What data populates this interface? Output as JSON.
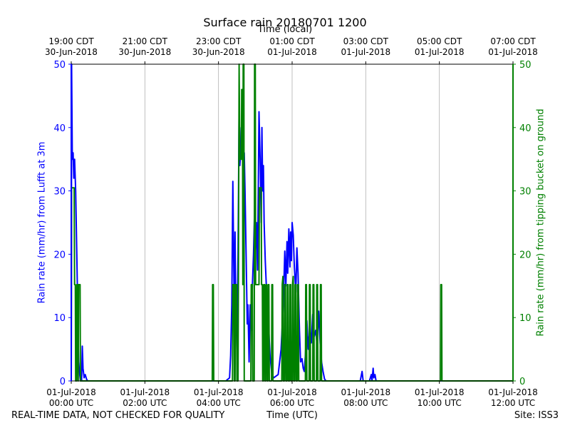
{
  "chart_data": {
    "type": "line",
    "title": "Surface rain 20180701 1200",
    "x_top_label": "Time (local)",
    "x_bottom_label": "Time (UTC)",
    "ylabel_left": "Rain rate (mm/hr) from Lufft at 3m",
    "ylabel_right": "Rain rate (mm/hr) from tipping bucket on ground",
    "x_range_hours_utc": [
      0,
      12
    ],
    "ylim_left": [
      0,
      50
    ],
    "ylim_right": [
      0,
      50
    ],
    "y_ticks": [
      0,
      10,
      20,
      30,
      40,
      50
    ],
    "grid": "vertical",
    "x_ticks_utc": [
      {
        "hour": 0,
        "date": "01-Jul-2018",
        "time": "00:00 UTC"
      },
      {
        "hour": 2,
        "date": "01-Jul-2018",
        "time": "02:00 UTC"
      },
      {
        "hour": 4,
        "date": "01-Jul-2018",
        "time": "04:00 UTC"
      },
      {
        "hour": 6,
        "date": "01-Jul-2018",
        "time": "06:00 UTC"
      },
      {
        "hour": 8,
        "date": "01-Jul-2018",
        "time": "08:00 UTC"
      },
      {
        "hour": 10,
        "date": "01-Jul-2018",
        "time": "10:00 UTC"
      },
      {
        "hour": 12,
        "date": "01-Jul-2018",
        "time": "12:00 UTC"
      }
    ],
    "x_ticks_local": [
      {
        "hour": 0,
        "time": "19:00 CDT",
        "date": "30-Jun-2018"
      },
      {
        "hour": 2,
        "time": "21:00 CDT",
        "date": "30-Jun-2018"
      },
      {
        "hour": 4,
        "time": "23:00 CDT",
        "date": "30-Jun-2018"
      },
      {
        "hour": 6,
        "time": "01:00 CDT",
        "date": "01-Jul-2018"
      },
      {
        "hour": 8,
        "time": "03:00 CDT",
        "date": "01-Jul-2018"
      },
      {
        "hour": 10,
        "time": "05:00 CDT",
        "date": "01-Jul-2018"
      },
      {
        "hour": 12,
        "time": "07:00 CDT",
        "date": "01-Jul-2018"
      }
    ],
    "series": [
      {
        "axis": "left",
        "color": "#0000ff",
        "points": [
          [
            0.0,
            0
          ],
          [
            0.01,
            50
          ],
          [
            0.03,
            35
          ],
          [
            0.05,
            36
          ],
          [
            0.07,
            32
          ],
          [
            0.09,
            35
          ],
          [
            0.12,
            30
          ],
          [
            0.15,
            20
          ],
          [
            0.18,
            10
          ],
          [
            0.2,
            3
          ],
          [
            0.23,
            1
          ],
          [
            0.25,
            0
          ],
          [
            0.28,
            0
          ],
          [
            0.3,
            5.5
          ],
          [
            0.32,
            2
          ],
          [
            0.35,
            0.5
          ],
          [
            0.38,
            1
          ],
          [
            0.42,
            0.2
          ],
          [
            0.45,
            0
          ],
          [
            4.2,
            0
          ],
          [
            4.3,
            0.5
          ],
          [
            4.33,
            4
          ],
          [
            4.36,
            12
          ],
          [
            4.39,
            31.5
          ],
          [
            4.41,
            20
          ],
          [
            4.43,
            10
          ],
          [
            4.45,
            23.5
          ],
          [
            4.47,
            12
          ],
          [
            4.5,
            5
          ],
          [
            4.53,
            20
          ],
          [
            4.56,
            43
          ],
          [
            4.58,
            34
          ],
          [
            4.6,
            36
          ],
          [
            4.62,
            40
          ],
          [
            4.65,
            35
          ],
          [
            4.68,
            33
          ],
          [
            4.7,
            36
          ],
          [
            4.72,
            30
          ],
          [
            4.75,
            20
          ],
          [
            4.78,
            9
          ],
          [
            4.8,
            12
          ],
          [
            4.83,
            3
          ],
          [
            4.86,
            12
          ],
          [
            4.89,
            8
          ],
          [
            4.92,
            15
          ],
          [
            4.95,
            20
          ],
          [
            4.98,
            27
          ],
          [
            5.0,
            20
          ],
          [
            5.03,
            25
          ],
          [
            5.06,
            17.5
          ],
          [
            5.08,
            30
          ],
          [
            5.1,
            42.5
          ],
          [
            5.13,
            35
          ],
          [
            5.16,
            25
          ],
          [
            5.18,
            40
          ],
          [
            5.2,
            30
          ],
          [
            5.22,
            34
          ],
          [
            5.24,
            25
          ],
          [
            5.27,
            19
          ],
          [
            5.3,
            15
          ],
          [
            5.35,
            10
          ],
          [
            5.4,
            4
          ],
          [
            5.45,
            1
          ],
          [
            5.5,
            0.5
          ],
          [
            5.62,
            1
          ],
          [
            5.7,
            5
          ],
          [
            5.76,
            12
          ],
          [
            5.8,
            20.5
          ],
          [
            5.83,
            15
          ],
          [
            5.86,
            22
          ],
          [
            5.88,
            17
          ],
          [
            5.91,
            24
          ],
          [
            5.94,
            18
          ],
          [
            5.96,
            23.5
          ],
          [
            5.98,
            19
          ],
          [
            6.0,
            25
          ],
          [
            6.03,
            23
          ],
          [
            6.06,
            18
          ],
          [
            6.1,
            14
          ],
          [
            6.13,
            21
          ],
          [
            6.16,
            17
          ],
          [
            6.2,
            8
          ],
          [
            6.23,
            3
          ],
          [
            6.27,
            3.5
          ],
          [
            6.3,
            2
          ],
          [
            6.33,
            1.5
          ],
          [
            6.36,
            4
          ],
          [
            6.4,
            9.5
          ],
          [
            6.44,
            5
          ],
          [
            6.48,
            8.5
          ],
          [
            6.52,
            6
          ],
          [
            6.56,
            10.5
          ],
          [
            6.6,
            7
          ],
          [
            6.64,
            8
          ],
          [
            6.68,
            5.5
          ],
          [
            6.72,
            11
          ],
          [
            6.76,
            6
          ],
          [
            6.8,
            3
          ],
          [
            6.84,
            1.5
          ],
          [
            6.88,
            0.3
          ],
          [
            6.92,
            0
          ],
          [
            7.85,
            0
          ],
          [
            7.9,
            1.5
          ],
          [
            7.93,
            0
          ],
          [
            8.1,
            0
          ],
          [
            8.15,
            1
          ],
          [
            8.17,
            0
          ],
          [
            8.2,
            2
          ],
          [
            8.22,
            0.5
          ],
          [
            8.25,
            1
          ],
          [
            8.28,
            0
          ],
          [
            12.0,
            0
          ]
        ]
      },
      {
        "axis": "right",
        "color": "#008000",
        "points": [
          [
            0.0,
            0
          ],
          [
            0.01,
            30.5
          ],
          [
            0.08,
            30.5
          ],
          [
            0.09,
            15.2
          ],
          [
            0.11,
            15.2
          ],
          [
            0.12,
            0
          ],
          [
            0.14,
            0
          ],
          [
            0.15,
            15.2
          ],
          [
            0.17,
            15.2
          ],
          [
            0.18,
            0
          ],
          [
            0.19,
            0
          ],
          [
            0.2,
            15.2
          ],
          [
            0.24,
            15.2
          ],
          [
            0.25,
            0
          ],
          [
            0.45,
            0
          ],
          [
            3.83,
            0
          ],
          [
            3.84,
            15.2
          ],
          [
            3.86,
            15.2
          ],
          [
            3.87,
            0
          ],
          [
            4.38,
            0
          ],
          [
            4.39,
            15.2
          ],
          [
            4.42,
            15.2
          ],
          [
            4.43,
            0
          ],
          [
            4.45,
            0
          ],
          [
            4.46,
            15.2
          ],
          [
            4.49,
            15.2
          ],
          [
            4.5,
            0
          ],
          [
            4.53,
            0
          ],
          [
            4.54,
            15.2
          ],
          [
            4.56,
            50
          ],
          [
            4.58,
            35
          ],
          [
            4.62,
            35
          ],
          [
            4.63,
            46
          ],
          [
            4.65,
            46
          ],
          [
            4.66,
            15.2
          ],
          [
            4.67,
            50
          ],
          [
            4.69,
            50
          ],
          [
            4.7,
            0
          ],
          [
            4.88,
            0
          ],
          [
            4.89,
            15.2
          ],
          [
            4.92,
            15.2
          ],
          [
            4.93,
            0
          ],
          [
            4.97,
            0
          ],
          [
            4.98,
            50
          ],
          [
            5.0,
            50
          ],
          [
            5.01,
            15.2
          ],
          [
            5.1,
            15.2
          ],
          [
            5.11,
            30.5
          ],
          [
            5.16,
            30.5
          ],
          [
            5.17,
            15.2
          ],
          [
            5.19,
            15.2
          ],
          [
            5.2,
            0
          ],
          [
            5.22,
            0
          ],
          [
            5.23,
            15.2
          ],
          [
            5.25,
            15.2
          ],
          [
            5.26,
            0
          ],
          [
            5.28,
            0
          ],
          [
            5.29,
            15.2
          ],
          [
            5.31,
            15.2
          ],
          [
            5.32,
            0
          ],
          [
            5.34,
            0
          ],
          [
            5.35,
            15.2
          ],
          [
            5.37,
            15.2
          ],
          [
            5.38,
            0
          ],
          [
            5.44,
            0
          ],
          [
            5.45,
            15.2
          ],
          [
            5.47,
            15.2
          ],
          [
            5.48,
            0
          ],
          [
            5.72,
            0
          ],
          [
            5.73,
            15.2
          ],
          [
            5.75,
            16.5
          ],
          [
            5.76,
            0
          ],
          [
            5.79,
            0
          ],
          [
            5.8,
            15.2
          ],
          [
            5.82,
            15.2
          ],
          [
            5.83,
            0
          ],
          [
            5.86,
            0
          ],
          [
            5.87,
            15.2
          ],
          [
            5.89,
            15.2
          ],
          [
            5.9,
            0
          ],
          [
            5.93,
            0
          ],
          [
            5.94,
            15.2
          ],
          [
            5.96,
            15.2
          ],
          [
            5.97,
            0
          ],
          [
            6.0,
            0
          ],
          [
            6.01,
            15.2
          ],
          [
            6.03,
            16.5
          ],
          [
            6.04,
            0
          ],
          [
            6.07,
            0
          ],
          [
            6.08,
            15.2
          ],
          [
            6.1,
            15.2
          ],
          [
            6.11,
            0
          ],
          [
            6.14,
            0
          ],
          [
            6.15,
            15.2
          ],
          [
            6.17,
            15.2
          ],
          [
            6.18,
            0
          ],
          [
            6.36,
            0
          ],
          [
            6.37,
            15.2
          ],
          [
            6.39,
            15.2
          ],
          [
            6.4,
            0
          ],
          [
            6.46,
            0
          ],
          [
            6.47,
            15.2
          ],
          [
            6.49,
            15.2
          ],
          [
            6.5,
            0
          ],
          [
            6.56,
            0
          ],
          [
            6.57,
            15.2
          ],
          [
            6.59,
            15.2
          ],
          [
            6.6,
            0
          ],
          [
            6.66,
            0
          ],
          [
            6.67,
            15.2
          ],
          [
            6.69,
            15.2
          ],
          [
            6.7,
            0
          ],
          [
            6.76,
            0
          ],
          [
            6.77,
            15.2
          ],
          [
            6.79,
            15.2
          ],
          [
            6.8,
            0
          ],
          [
            10.03,
            0
          ],
          [
            10.04,
            15.2
          ],
          [
            10.06,
            15.2
          ],
          [
            10.07,
            0
          ],
          [
            12.0,
            0
          ]
        ]
      }
    ]
  },
  "footer": {
    "left": "REAL-TIME DATA, NOT CHECKED FOR QUALITY",
    "center": "Time (UTC)",
    "right": "Site: ISS3"
  }
}
